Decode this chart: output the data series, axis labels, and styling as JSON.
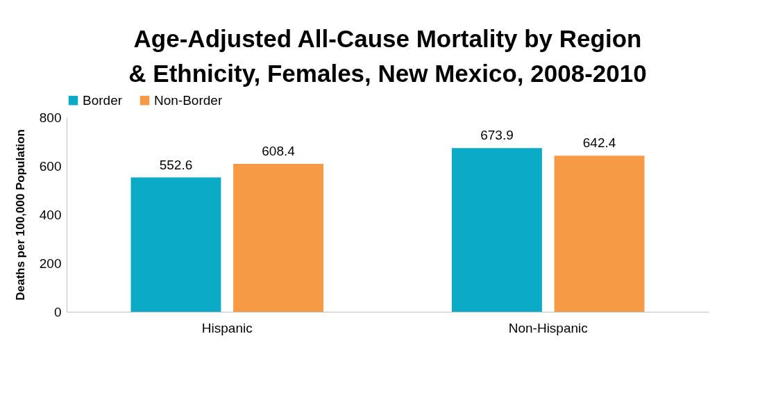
{
  "chart_data": {
    "type": "bar",
    "title": "Age-Adjusted All-Cause Mortality by Region & Ethnicity, Females, New Mexico, 2008-2010",
    "ylabel": "Deaths per 100,000 Population",
    "categories": [
      "Hispanic",
      "Non-Hispanic"
    ],
    "series": [
      {
        "name": "Border",
        "color": "#0babc6",
        "values": [
          552.6,
          673.9
        ]
      },
      {
        "name": "Non-Border",
        "color": "#f79a46",
        "values": [
          608.4,
          642.4
        ]
      }
    ],
    "ylim": [
      0,
      800
    ],
    "yticks": [
      0,
      200,
      400,
      600,
      800
    ],
    "grid": false,
    "legend": "top",
    "data_labels": true
  }
}
